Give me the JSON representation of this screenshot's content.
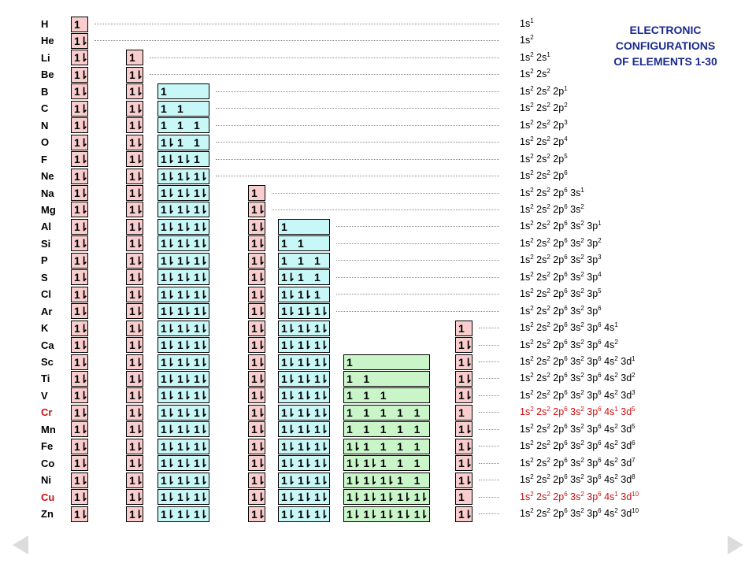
{
  "title": [
    "ELECTRONIC",
    "CONFIGURATIONS",
    "OF ELEMENTS 1-30"
  ],
  "colors": {
    "s_fill": "#f9cdcd",
    "p_fill": "#c8f7f7",
    "d_fill": "#c9f5c9",
    "red_text": "#cc1010"
  },
  "orbitals": [
    "1s",
    "2s",
    "2p",
    "3s",
    "3p",
    "4s",
    "3d"
  ],
  "elements": [
    {
      "symbol": "H",
      "highlight": false,
      "cells": [
        [
          "1"
        ],
        null,
        null,
        null,
        null,
        null,
        null
      ],
      "config": [
        [
          "1s",
          "1"
        ]
      ]
    },
    {
      "symbol": "He",
      "highlight": false,
      "cells": [
        [
          "1⇂"
        ],
        null,
        null,
        null,
        null,
        null,
        null
      ],
      "config": [
        [
          "1s",
          "2"
        ]
      ]
    },
    {
      "symbol": "Li",
      "highlight": false,
      "cells": [
        [
          "1⇂"
        ],
        [
          "1"
        ],
        null,
        null,
        null,
        null,
        null
      ],
      "config": [
        [
          "1s",
          "2"
        ],
        [
          "2s",
          "1"
        ]
      ]
    },
    {
      "symbol": "Be",
      "highlight": false,
      "cells": [
        [
          "1⇂"
        ],
        [
          "1⇂"
        ],
        null,
        null,
        null,
        null,
        null
      ],
      "config": [
        [
          "1s",
          "2"
        ],
        [
          "2s",
          "2"
        ]
      ]
    },
    {
      "symbol": "B",
      "highlight": false,
      "cells": [
        [
          "1⇂"
        ],
        [
          "1⇂"
        ],
        [
          "1",
          "",
          ""
        ],
        null,
        null,
        null,
        null
      ],
      "config": [
        [
          "1s",
          "2"
        ],
        [
          "2s",
          "2"
        ],
        [
          "2p",
          "1"
        ]
      ]
    },
    {
      "symbol": "C",
      "highlight": false,
      "cells": [
        [
          "1⇂"
        ],
        [
          "1⇂"
        ],
        [
          "1",
          "1",
          ""
        ],
        null,
        null,
        null,
        null
      ],
      "config": [
        [
          "1s",
          "2"
        ],
        [
          "2s",
          "2"
        ],
        [
          "2p",
          "2"
        ]
      ]
    },
    {
      "symbol": "N",
      "highlight": false,
      "cells": [
        [
          "1⇂"
        ],
        [
          "1⇂"
        ],
        [
          "1",
          "1",
          "1"
        ],
        null,
        null,
        null,
        null
      ],
      "config": [
        [
          "1s",
          "2"
        ],
        [
          "2s",
          "2"
        ],
        [
          "2p",
          "3"
        ]
      ]
    },
    {
      "symbol": "O",
      "highlight": false,
      "cells": [
        [
          "1⇂"
        ],
        [
          "1⇂"
        ],
        [
          "1⇂",
          "1",
          "1"
        ],
        null,
        null,
        null,
        null
      ],
      "config": [
        [
          "1s",
          "2"
        ],
        [
          "2s",
          "2"
        ],
        [
          "2p",
          "4"
        ]
      ]
    },
    {
      "symbol": "F",
      "highlight": false,
      "cells": [
        [
          "1⇂"
        ],
        [
          "1⇂"
        ],
        [
          "1⇂",
          "1⇂",
          "1"
        ],
        null,
        null,
        null,
        null
      ],
      "config": [
        [
          "1s",
          "2"
        ],
        [
          "2s",
          "2"
        ],
        [
          "2p",
          "5"
        ]
      ]
    },
    {
      "symbol": "Ne",
      "highlight": false,
      "cells": [
        [
          "1⇂"
        ],
        [
          "1⇂"
        ],
        [
          "1⇂",
          "1⇂",
          "1⇂"
        ],
        null,
        null,
        null,
        null
      ],
      "config": [
        [
          "1s",
          "2"
        ],
        [
          "2s",
          "2"
        ],
        [
          "2p",
          "6"
        ]
      ]
    },
    {
      "symbol": "Na",
      "highlight": false,
      "cells": [
        [
          "1⇂"
        ],
        [
          "1⇂"
        ],
        [
          "1⇂",
          "1⇂",
          "1⇂"
        ],
        [
          "1"
        ],
        null,
        null,
        null
      ],
      "config": [
        [
          "1s",
          "2"
        ],
        [
          "2s",
          "2"
        ],
        [
          "2p",
          "6"
        ],
        [
          "3s",
          "1"
        ]
      ]
    },
    {
      "symbol": "Mg",
      "highlight": false,
      "cells": [
        [
          "1⇂"
        ],
        [
          "1⇂"
        ],
        [
          "1⇂",
          "1⇂",
          "1⇂"
        ],
        [
          "1⇂"
        ],
        null,
        null,
        null
      ],
      "config": [
        [
          "1s",
          "2"
        ],
        [
          "2s",
          "2"
        ],
        [
          "2p",
          "6"
        ],
        [
          "3s",
          "2"
        ]
      ]
    },
    {
      "symbol": "Al",
      "highlight": false,
      "cells": [
        [
          "1⇂"
        ],
        [
          "1⇂"
        ],
        [
          "1⇂",
          "1⇂",
          "1⇂"
        ],
        [
          "1⇂"
        ],
        [
          "1",
          "",
          ""
        ],
        null,
        null
      ],
      "config": [
        [
          "1s",
          "2"
        ],
        [
          "2s",
          "2"
        ],
        [
          "2p",
          "6"
        ],
        [
          "3s",
          "2"
        ],
        [
          "3p",
          "1"
        ]
      ]
    },
    {
      "symbol": "Si",
      "highlight": false,
      "cells": [
        [
          "1⇂"
        ],
        [
          "1⇂"
        ],
        [
          "1⇂",
          "1⇂",
          "1⇂"
        ],
        [
          "1⇂"
        ],
        [
          "1",
          "1",
          ""
        ],
        null,
        null
      ],
      "config": [
        [
          "1s",
          "2"
        ],
        [
          "2s",
          "2"
        ],
        [
          "2p",
          "6"
        ],
        [
          "3s",
          "2"
        ],
        [
          "3p",
          "2"
        ]
      ]
    },
    {
      "symbol": "P",
      "highlight": false,
      "cells": [
        [
          "1⇂"
        ],
        [
          "1⇂"
        ],
        [
          "1⇂",
          "1⇂",
          "1⇂"
        ],
        [
          "1⇂"
        ],
        [
          "1",
          "1",
          "1"
        ],
        null,
        null
      ],
      "config": [
        [
          "1s",
          "2"
        ],
        [
          "2s",
          "2"
        ],
        [
          "2p",
          "6"
        ],
        [
          "3s",
          "2"
        ],
        [
          "3p",
          "3"
        ]
      ]
    },
    {
      "symbol": "S",
      "highlight": false,
      "cells": [
        [
          "1⇂"
        ],
        [
          "1⇂"
        ],
        [
          "1⇂",
          "1⇂",
          "1⇂"
        ],
        [
          "1⇂"
        ],
        [
          "1⇂",
          "1",
          "1"
        ],
        null,
        null
      ],
      "config": [
        [
          "1s",
          "2"
        ],
        [
          "2s",
          "2"
        ],
        [
          "2p",
          "6"
        ],
        [
          "3s",
          "2"
        ],
        [
          "3p",
          "4"
        ]
      ]
    },
    {
      "symbol": "Cl",
      "highlight": false,
      "cells": [
        [
          "1⇂"
        ],
        [
          "1⇂"
        ],
        [
          "1⇂",
          "1⇂",
          "1⇂"
        ],
        [
          "1⇂"
        ],
        [
          "1⇂",
          "1⇂",
          "1"
        ],
        null,
        null
      ],
      "config": [
        [
          "1s",
          "2"
        ],
        [
          "2s",
          "2"
        ],
        [
          "2p",
          "6"
        ],
        [
          "3s",
          "2"
        ],
        [
          "3p",
          "5"
        ]
      ]
    },
    {
      "symbol": "Ar",
      "highlight": false,
      "cells": [
        [
          "1⇂"
        ],
        [
          "1⇂"
        ],
        [
          "1⇂",
          "1⇂",
          "1⇂"
        ],
        [
          "1⇂"
        ],
        [
          "1⇂",
          "1⇂",
          "1⇂"
        ],
        null,
        null
      ],
      "config": [
        [
          "1s",
          "2"
        ],
        [
          "2s",
          "2"
        ],
        [
          "2p",
          "6"
        ],
        [
          "3s",
          "2"
        ],
        [
          "3p",
          "6"
        ]
      ]
    },
    {
      "symbol": "K",
      "highlight": false,
      "cells": [
        [
          "1⇂"
        ],
        [
          "1⇂"
        ],
        [
          "1⇂",
          "1⇂",
          "1⇂"
        ],
        [
          "1⇂"
        ],
        [
          "1⇂",
          "1⇂",
          "1⇂"
        ],
        [
          "1"
        ],
        null
      ],
      "config": [
        [
          "1s",
          "2"
        ],
        [
          "2s",
          "2"
        ],
        [
          "2p",
          "6"
        ],
        [
          "3s",
          "2"
        ],
        [
          "3p",
          "6"
        ],
        [
          "4s",
          "1"
        ]
      ]
    },
    {
      "symbol": "Ca",
      "highlight": false,
      "cells": [
        [
          "1⇂"
        ],
        [
          "1⇂"
        ],
        [
          "1⇂",
          "1⇂",
          "1⇂"
        ],
        [
          "1⇂"
        ],
        [
          "1⇂",
          "1⇂",
          "1⇂"
        ],
        [
          "1⇂"
        ],
        null
      ],
      "config": [
        [
          "1s",
          "2"
        ],
        [
          "2s",
          "2"
        ],
        [
          "2p",
          "6"
        ],
        [
          "3s",
          "2"
        ],
        [
          "3p",
          "6"
        ],
        [
          "4s",
          "2"
        ]
      ]
    },
    {
      "symbol": "Sc",
      "highlight": false,
      "cells": [
        [
          "1⇂"
        ],
        [
          "1⇂"
        ],
        [
          "1⇂",
          "1⇂",
          "1⇂"
        ],
        [
          "1⇂"
        ],
        [
          "1⇂",
          "1⇂",
          "1⇂"
        ],
        [
          "1⇂"
        ],
        [
          "1",
          "",
          "",
          "",
          ""
        ]
      ],
      "config": [
        [
          "1s",
          "2"
        ],
        [
          "2s",
          "2"
        ],
        [
          "2p",
          "6"
        ],
        [
          "3s",
          "2"
        ],
        [
          "3p",
          "6"
        ],
        [
          "4s",
          "2"
        ],
        [
          "3d",
          "1"
        ]
      ]
    },
    {
      "symbol": "Ti",
      "highlight": false,
      "cells": [
        [
          "1⇂"
        ],
        [
          "1⇂"
        ],
        [
          "1⇂",
          "1⇂",
          "1⇂"
        ],
        [
          "1⇂"
        ],
        [
          "1⇂",
          "1⇂",
          "1⇂"
        ],
        [
          "1⇂"
        ],
        [
          "1",
          "1",
          "",
          "",
          ""
        ]
      ],
      "config": [
        [
          "1s",
          "2"
        ],
        [
          "2s",
          "2"
        ],
        [
          "2p",
          "6"
        ],
        [
          "3s",
          "2"
        ],
        [
          "3p",
          "6"
        ],
        [
          "4s",
          "2"
        ],
        [
          "3d",
          "2"
        ]
      ]
    },
    {
      "symbol": "V",
      "highlight": false,
      "cells": [
        [
          "1⇂"
        ],
        [
          "1⇂"
        ],
        [
          "1⇂",
          "1⇂",
          "1⇂"
        ],
        [
          "1⇂"
        ],
        [
          "1⇂",
          "1⇂",
          "1⇂"
        ],
        [
          "1⇂"
        ],
        [
          "1",
          "1",
          "1",
          "",
          ""
        ]
      ],
      "config": [
        [
          "1s",
          "2"
        ],
        [
          "2s",
          "2"
        ],
        [
          "2p",
          "6"
        ],
        [
          "3s",
          "2"
        ],
        [
          "3p",
          "6"
        ],
        [
          "4s",
          "2"
        ],
        [
          "3d",
          "3"
        ]
      ]
    },
    {
      "symbol": "Cr",
      "highlight": true,
      "cells": [
        [
          "1⇂"
        ],
        [
          "1⇂"
        ],
        [
          "1⇂",
          "1⇂",
          "1⇂"
        ],
        [
          "1⇂"
        ],
        [
          "1⇂",
          "1⇂",
          "1⇂"
        ],
        [
          "1"
        ],
        [
          "1",
          "1",
          "1",
          "1",
          "1"
        ]
      ],
      "config": [
        [
          "1s",
          "2"
        ],
        [
          "2s",
          "2"
        ],
        [
          "2p",
          "6"
        ],
        [
          "3s",
          "2"
        ],
        [
          "3p",
          "6"
        ],
        [
          "4s",
          "1"
        ],
        [
          "3d",
          "5"
        ]
      ]
    },
    {
      "symbol": "Mn",
      "highlight": false,
      "cells": [
        [
          "1⇂"
        ],
        [
          "1⇂"
        ],
        [
          "1⇂",
          "1⇂",
          "1⇂"
        ],
        [
          "1⇂"
        ],
        [
          "1⇂",
          "1⇂",
          "1⇂"
        ],
        [
          "1⇂"
        ],
        [
          "1",
          "1",
          "1",
          "1",
          "1"
        ]
      ],
      "config": [
        [
          "1s",
          "2"
        ],
        [
          "2s",
          "2"
        ],
        [
          "2p",
          "6"
        ],
        [
          "3s",
          "2"
        ],
        [
          "3p",
          "6"
        ],
        [
          "4s",
          "2"
        ],
        [
          "3d",
          "5"
        ]
      ]
    },
    {
      "symbol": "Fe",
      "highlight": false,
      "cells": [
        [
          "1⇂"
        ],
        [
          "1⇂"
        ],
        [
          "1⇂",
          "1⇂",
          "1⇂"
        ],
        [
          "1⇂"
        ],
        [
          "1⇂",
          "1⇂",
          "1⇂"
        ],
        [
          "1⇂"
        ],
        [
          "1⇂",
          "1",
          "1",
          "1",
          "1"
        ]
      ],
      "config": [
        [
          "1s",
          "2"
        ],
        [
          "2s",
          "2"
        ],
        [
          "2p",
          "6"
        ],
        [
          "3s",
          "2"
        ],
        [
          "3p",
          "6"
        ],
        [
          "4s",
          "2"
        ],
        [
          "3d",
          "6"
        ]
      ]
    },
    {
      "symbol": "Co",
      "highlight": false,
      "cells": [
        [
          "1⇂"
        ],
        [
          "1⇂"
        ],
        [
          "1⇂",
          "1⇂",
          "1⇂"
        ],
        [
          "1⇂"
        ],
        [
          "1⇂",
          "1⇂",
          "1⇂"
        ],
        [
          "1⇂"
        ],
        [
          "1⇂",
          "1⇂",
          "1",
          "1",
          "1"
        ]
      ],
      "config": [
        [
          "1s",
          "2"
        ],
        [
          "2s",
          "2"
        ],
        [
          "2p",
          "6"
        ],
        [
          "3s",
          "2"
        ],
        [
          "3p",
          "6"
        ],
        [
          "4s",
          "2"
        ],
        [
          "3d",
          "7"
        ]
      ]
    },
    {
      "symbol": "Ni",
      "highlight": false,
      "cells": [
        [
          "1⇂"
        ],
        [
          "1⇂"
        ],
        [
          "1⇂",
          "1⇂",
          "1⇂"
        ],
        [
          "1⇂"
        ],
        [
          "1⇂",
          "1⇂",
          "1⇂"
        ],
        [
          "1⇂"
        ],
        [
          "1⇂",
          "1⇂",
          "1⇂",
          "1",
          "1"
        ]
      ],
      "config": [
        [
          "1s",
          "2"
        ],
        [
          "2s",
          "2"
        ],
        [
          "2p",
          "6"
        ],
        [
          "3s",
          "2"
        ],
        [
          "3p",
          "6"
        ],
        [
          "4s",
          "2"
        ],
        [
          "3d",
          "8"
        ]
      ]
    },
    {
      "symbol": "Cu",
      "highlight": true,
      "cells": [
        [
          "1⇂"
        ],
        [
          "1⇂"
        ],
        [
          "1⇂",
          "1⇂",
          "1⇂"
        ],
        [
          "1⇂"
        ],
        [
          "1⇂",
          "1⇂",
          "1⇂"
        ],
        [
          "1"
        ],
        [
          "1⇂",
          "1⇂",
          "1⇂",
          "1⇂",
          "1⇂"
        ]
      ],
      "config": [
        [
          "1s",
          "2"
        ],
        [
          "2s",
          "2"
        ],
        [
          "2p",
          "6"
        ],
        [
          "3s",
          "2"
        ],
        [
          "3p",
          "6"
        ],
        [
          "4s",
          "1"
        ],
        [
          "3d",
          "10"
        ]
      ]
    },
    {
      "symbol": "Zn",
      "highlight": false,
      "cells": [
        [
          "1⇂"
        ],
        [
          "1⇂"
        ],
        [
          "1⇂",
          "1⇂",
          "1⇂"
        ],
        [
          "1⇂"
        ],
        [
          "1⇂",
          "1⇂",
          "1⇂"
        ],
        [
          "1⇂"
        ],
        [
          "1⇂",
          "1⇂",
          "1⇂",
          "1⇂",
          "1⇂"
        ]
      ],
      "config": [
        [
          "1s",
          "2"
        ],
        [
          "2s",
          "2"
        ],
        [
          "2p",
          "6"
        ],
        [
          "3s",
          "2"
        ],
        [
          "3p",
          "6"
        ],
        [
          "4s",
          "2"
        ],
        [
          "3d",
          "10"
        ]
      ]
    }
  ],
  "nav": {
    "prev_icon": "left-triangle-icon",
    "next_icon": "right-triangle-icon"
  }
}
